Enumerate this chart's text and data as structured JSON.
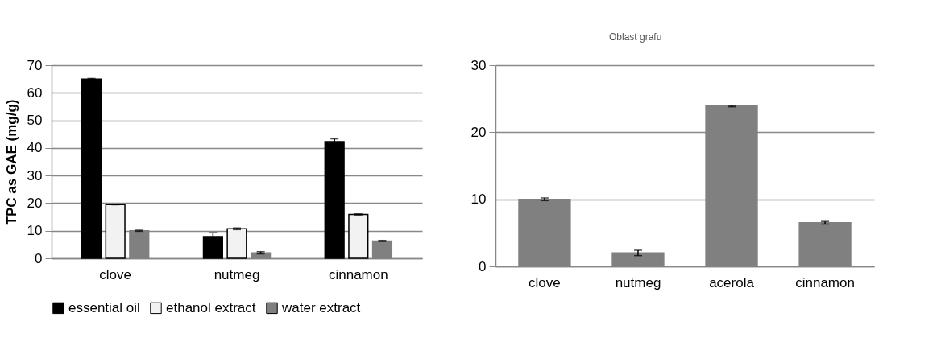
{
  "chart_data": [
    {
      "type": "bar",
      "ylabel": "TPC as GAE (mg/g)",
      "categories": [
        "clove",
        "nutmeg",
        "cinnamon"
      ],
      "series": [
        {
          "name": "essential oil",
          "color": "#000000",
          "values": [
            65.0,
            7.9,
            42.3
          ],
          "errors": [
            0.2,
            1.4,
            1.0
          ]
        },
        {
          "name": "ethanol extract",
          "color": "#f2f2f2",
          "values": [
            19.5,
            10.7,
            15.9
          ],
          "errors": [
            0.1,
            0.3,
            0.2
          ]
        },
        {
          "name": "water extract",
          "color": "#808080",
          "values": [
            10.0,
            2.0,
            6.3
          ],
          "errors": [
            0.2,
            0.4,
            0.2
          ]
        }
      ],
      "ylim": [
        0,
        70
      ],
      "yticks": [
        0,
        10,
        20,
        30,
        40,
        50,
        60,
        70
      ],
      "grid": "y",
      "legend": "bottom left"
    },
    {
      "type": "bar",
      "categories": [
        "clove",
        "nutmeg",
        "acerola",
        "cinnamon"
      ],
      "values": [
        10.0,
        2.0,
        23.9,
        6.5
      ],
      "errors": [
        0.2,
        0.4,
        0.1,
        0.2
      ],
      "color": "#808080",
      "ylim": [
        0,
        30
      ],
      "yticks": [
        0,
        10,
        20,
        30
      ],
      "grid": "y",
      "legend": false,
      "annotations": [
        "Oblast grafu"
      ]
    }
  ]
}
